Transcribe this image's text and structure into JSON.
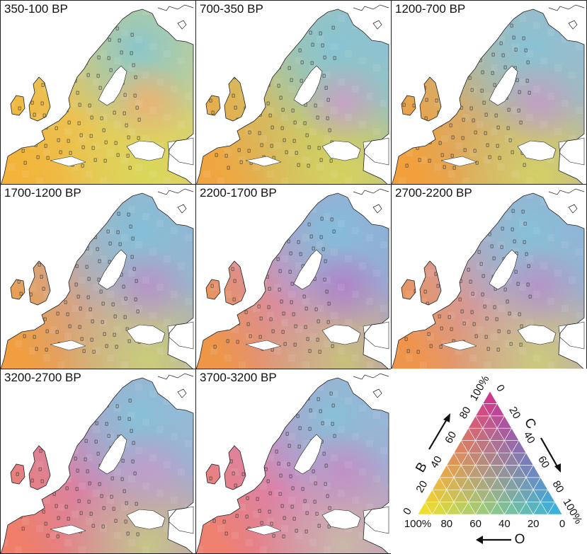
{
  "panels": [
    {
      "label": "350-100 BP",
      "blend": {
        "west": "#f2b43a",
        "center": "#e8c85c",
        "east": "#cfd28a",
        "north": "#87c6cf",
        "south": "#d8d95a",
        "blob": "#f0b070"
      }
    },
    {
      "label": "700-350 BP",
      "blend": {
        "west": "#f0a640",
        "center": "#c9c36e",
        "east": "#8fbfd8",
        "north": "#86c4d6",
        "south": "#d7d35b",
        "blob": "#c99dca"
      }
    },
    {
      "label": "1200-700 BP",
      "blend": {
        "west": "#f2a03b",
        "center": "#cdb07a",
        "east": "#9fb9d2",
        "north": "#86c2d8",
        "south": "#d5d363",
        "blob": "#c49bc9"
      }
    },
    {
      "label": "1700-1200 BP",
      "blend": {
        "west": "#f09e3f",
        "center": "#c8a6a3",
        "east": "#93b2d6",
        "north": "#82c0da",
        "south": "#c9d274",
        "blob": "#b98fc9"
      }
    },
    {
      "label": "2200-1700 BP",
      "blend": {
        "west": "#ee9648",
        "center": "#d38ab7",
        "east": "#8fa9d8",
        "north": "#82bfdb",
        "south": "#c7c673",
        "blob": "#b07ec8"
      }
    },
    {
      "label": "2700-2200 BP",
      "blend": {
        "west": "#ef944b",
        "center": "#cc9bb0",
        "east": "#92b0d8",
        "north": "#83c1da",
        "south": "#cbcf76",
        "blob": "#b690c8"
      }
    },
    {
      "label": "3200-2700 BP",
      "blend": {
        "west": "#ef7e6a",
        "center": "#d184b6",
        "east": "#9bb8d7",
        "north": "#84c2d9",
        "south": "#c4cc82",
        "blob": "#c39ccb"
      }
    },
    {
      "label": "3700-3200 BP",
      "blend": {
        "west": "#ee8070",
        "center": "#d583bb",
        "east": "#a1b2d6",
        "north": "#85c1d9",
        "south": "#c9bda5",
        "blob": "#c58cc4"
      }
    }
  ],
  "legend": {
    "axis_b": "B",
    "axis_c": "C",
    "axis_o": "O",
    "b_ticks": [
      "0",
      "20",
      "40",
      "60",
      "80",
      "100%"
    ],
    "c_ticks": [
      "0",
      "20",
      "40",
      "60",
      "80",
      "100%"
    ],
    "o_ticks": [
      "100%",
      "80",
      "60",
      "40",
      "20",
      "0"
    ],
    "corner_colors": {
      "B": "#d12f8f",
      "C": "#2fb4e4",
      "O": "#f7e623"
    }
  }
}
